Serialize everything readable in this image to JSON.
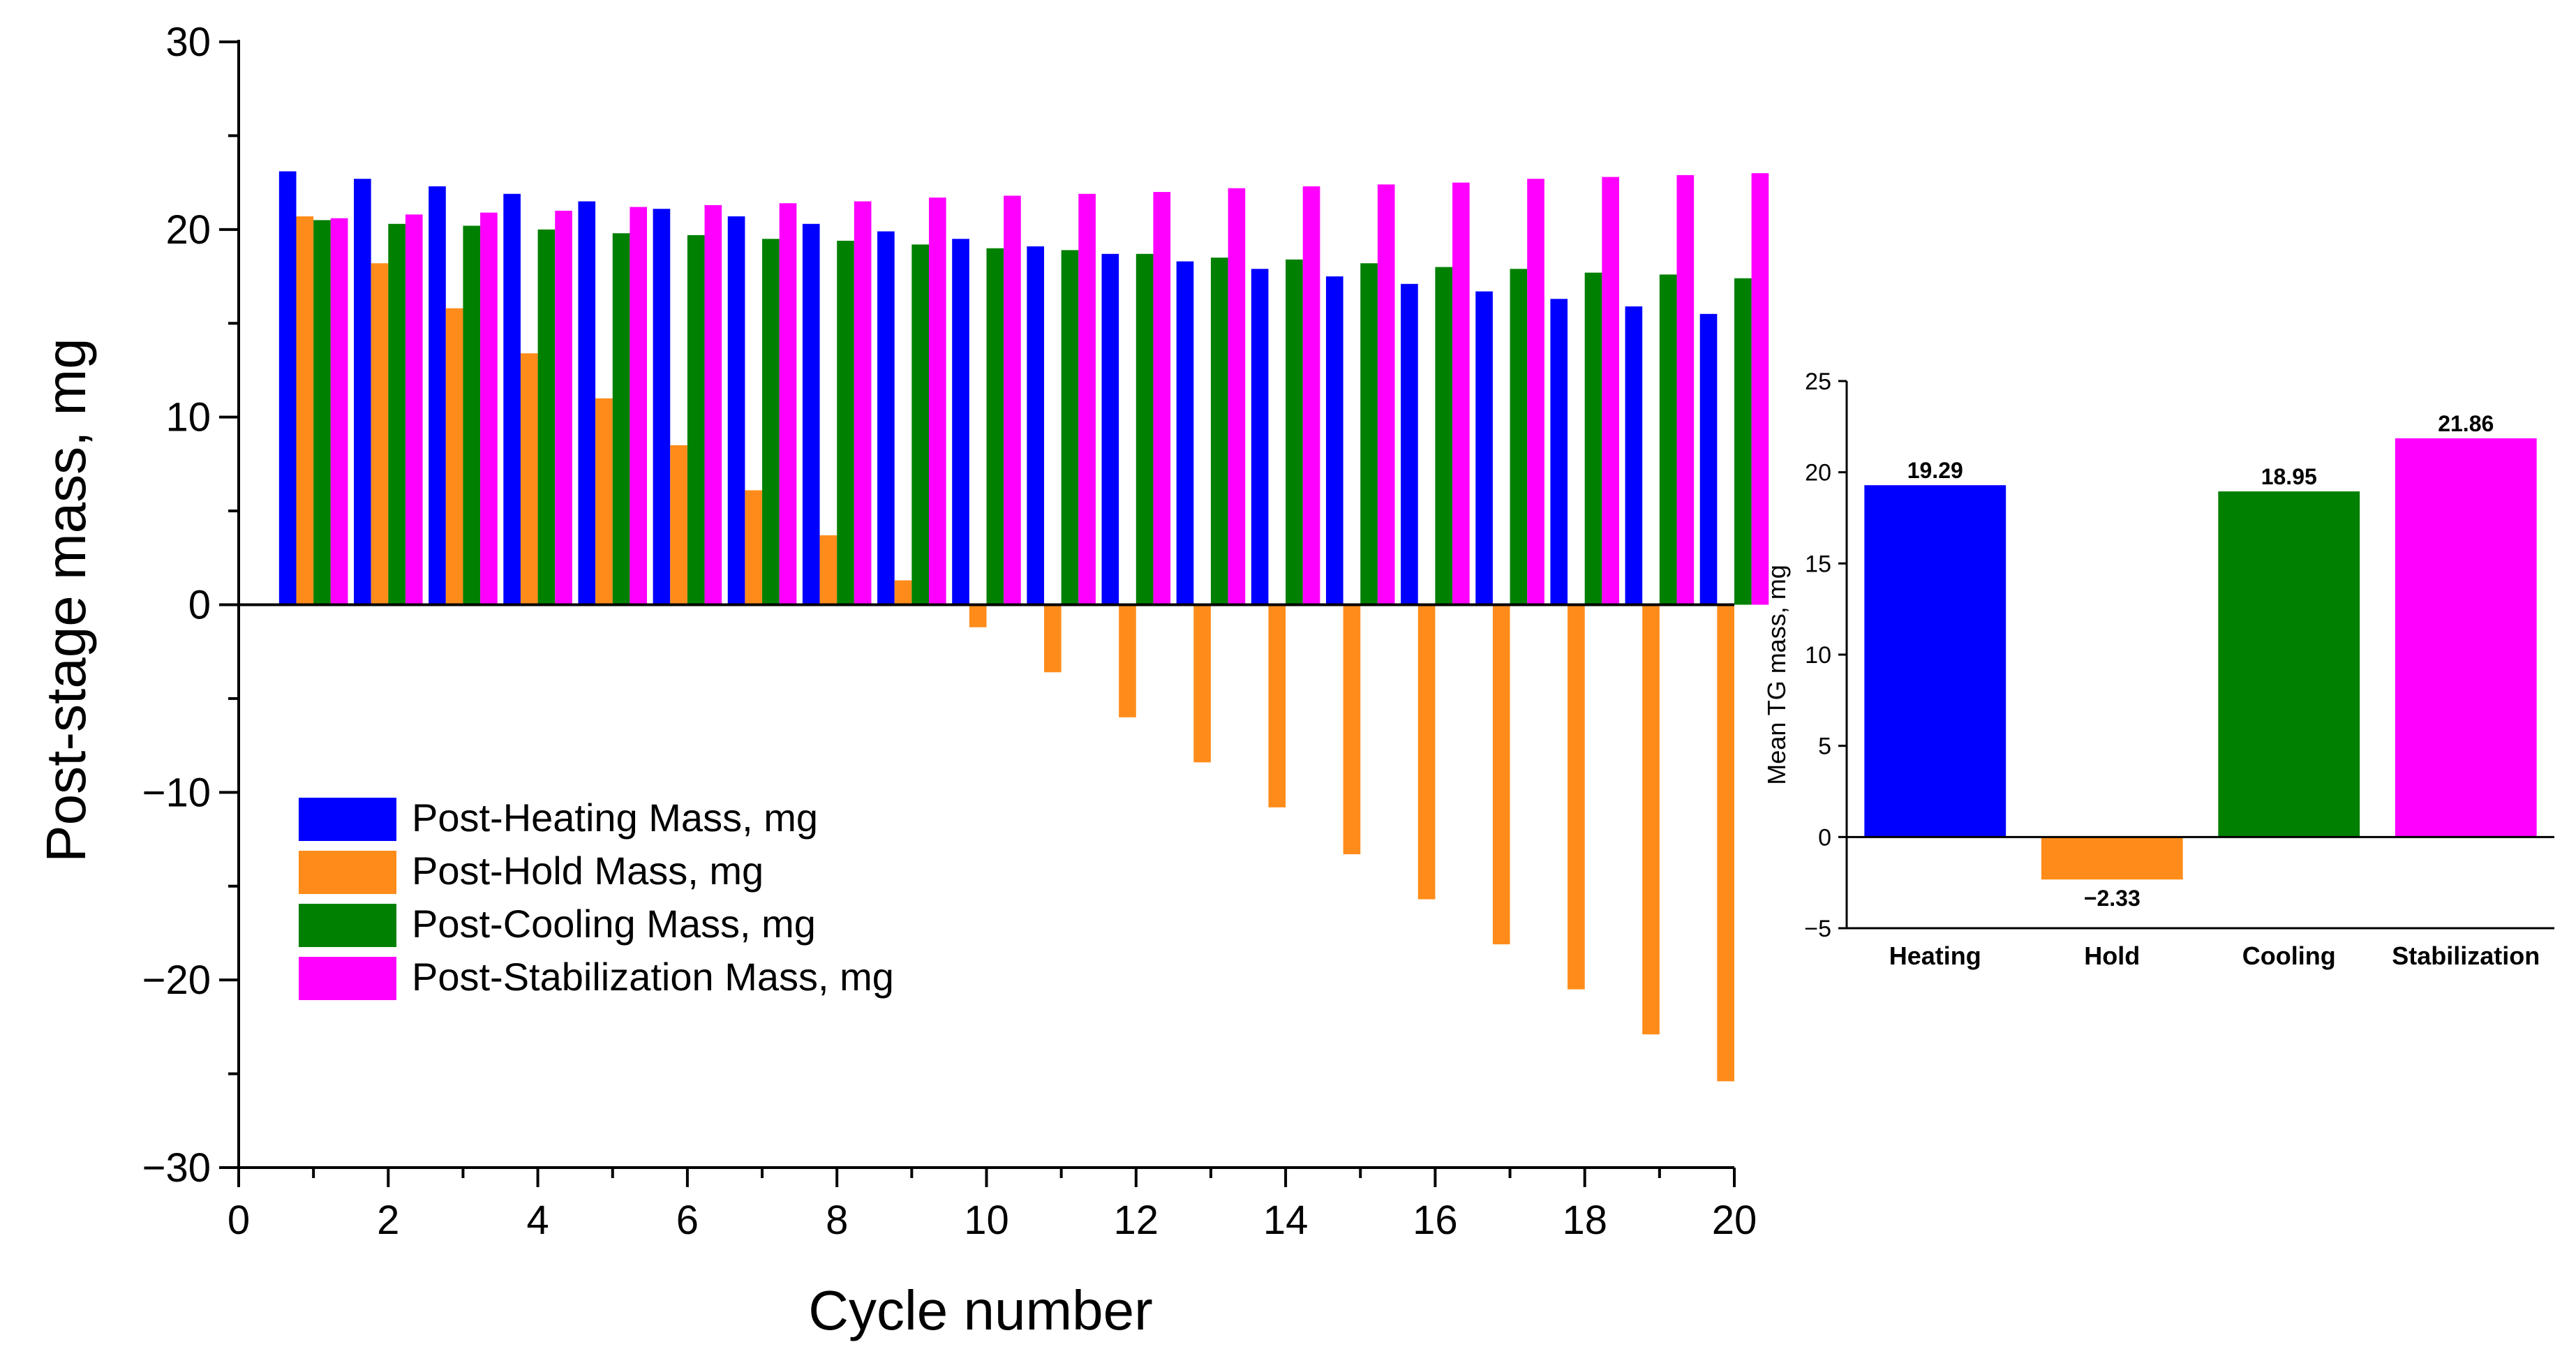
{
  "chart_data": [
    {
      "type": "bar",
      "title": "",
      "xlabel": "Cycle number",
      "ylabel": "Post-stage mass, mg",
      "xlim": [
        0,
        20
      ],
      "ylim": [
        -30,
        30
      ],
      "x_ticks": [
        0,
        2,
        4,
        6,
        8,
        10,
        12,
        14,
        16,
        18,
        20
      ],
      "y_ticks": [
        -30,
        -20,
        -10,
        0,
        10,
        20,
        30
      ],
      "x_tick_labels": [
        "0",
        "2",
        "4",
        "6",
        "8",
        "10",
        "12",
        "14",
        "16",
        "18",
        "20"
      ],
      "y_tick_labels": [
        "−30",
        "−20",
        "−10",
        "0",
        "10",
        "20",
        "30"
      ],
      "legend_position": "lower-left",
      "categories": [
        1,
        2,
        3,
        4,
        5,
        6,
        7,
        8,
        9,
        10,
        11,
        12,
        13,
        14,
        15,
        16,
        17,
        18,
        19,
        20
      ],
      "series": [
        {
          "name": "Post-Heating Mass, mg",
          "color": "#0000ff",
          "values": [
            23.1,
            22.7,
            22.3,
            21.9,
            21.5,
            21.1,
            20.7,
            20.3,
            19.9,
            19.5,
            19.1,
            18.7,
            18.3,
            17.9,
            17.5,
            17.1,
            16.7,
            16.3,
            15.9,
            15.5
          ]
        },
        {
          "name": "Post-Hold Mass, mg",
          "color": "#ff8c1a",
          "values": [
            20.7,
            18.2,
            15.8,
            13.4,
            11.0,
            8.5,
            6.1,
            3.7,
            1.3,
            -1.2,
            -3.6,
            -6.0,
            -8.4,
            -10.8,
            -13.3,
            -15.7,
            -18.1,
            -20.5,
            -22.9,
            -25.4
          ]
        },
        {
          "name": "Post-Cooling Mass, mg",
          "color": "#008000",
          "values": [
            20.5,
            20.3,
            20.2,
            20.0,
            19.8,
            19.7,
            19.5,
            19.4,
            19.2,
            19.0,
            18.9,
            18.7,
            18.5,
            18.4,
            18.2,
            18.0,
            17.9,
            17.7,
            17.6,
            17.4
          ]
        },
        {
          "name": "Post-Stabilization Mass, mg",
          "color": "#ff00ff",
          "values": [
            20.6,
            20.8,
            20.9,
            21.0,
            21.2,
            21.3,
            21.4,
            21.5,
            21.7,
            21.8,
            21.9,
            22.0,
            22.2,
            22.3,
            22.4,
            22.5,
            22.7,
            22.8,
            22.9,
            23.0
          ]
        }
      ]
    },
    {
      "type": "bar",
      "title": "",
      "xlabel": "",
      "ylabel": "Mean TG mass, mg",
      "ylim": [
        -5,
        25
      ],
      "y_ticks": [
        -5,
        0,
        5,
        10,
        15,
        20,
        25
      ],
      "y_tick_labels": [
        "−5",
        "0",
        "5",
        "10",
        "15",
        "20",
        "25"
      ],
      "categories": [
        "Heating",
        "Hold",
        "Cooling",
        "Stabilization"
      ],
      "values": [
        19.29,
        -2.33,
        18.95,
        21.86
      ],
      "value_labels": [
        "19.29",
        "−2.33",
        "18.95",
        "21.86"
      ],
      "colors": [
        "#0000ff",
        "#ff8c1a",
        "#008000",
        "#ff00ff"
      ]
    }
  ]
}
